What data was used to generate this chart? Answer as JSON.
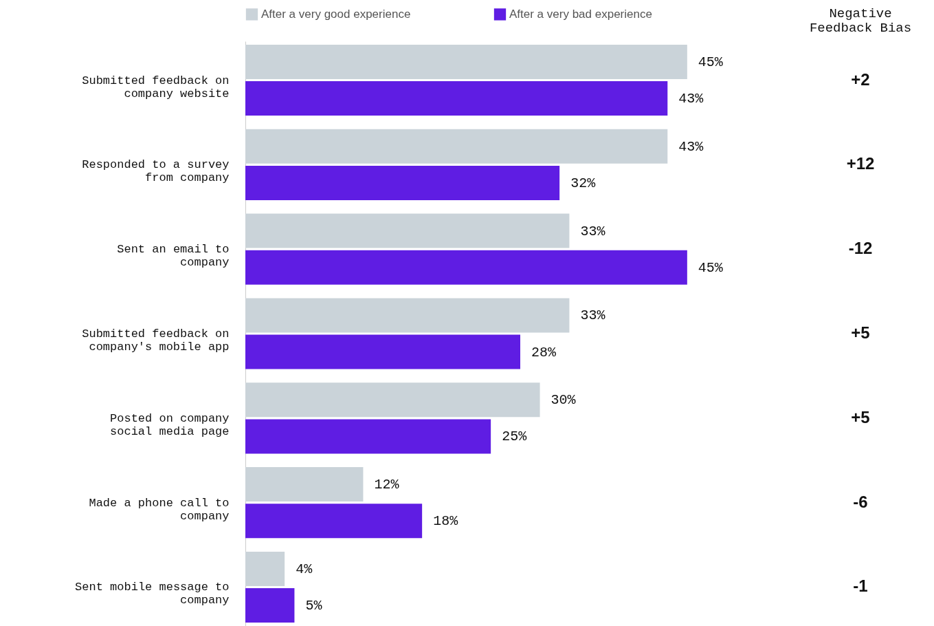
{
  "chart_data": {
    "type": "bar",
    "orientation": "horizontal",
    "categories": [
      "Submitted feedback on\ncompany website",
      "Responded to a survey\nfrom company",
      "Sent an email to\ncompany",
      "Submitted feedback on\ncompany's mobile app",
      "Posted on company\nsocial media page",
      "Made a phone call to\ncompany",
      "Sent mobile message to\ncompany"
    ],
    "series": [
      {
        "name": "After a very good experience",
        "color": "#cad3d9",
        "values": [
          45,
          43,
          33,
          33,
          30,
          12,
          4
        ],
        "value_labels": [
          "45%",
          "43%",
          "33%",
          "33%",
          "30%",
          "12%",
          "4%"
        ]
      },
      {
        "name": "After a very bad experience",
        "color": "#5f1de3",
        "values": [
          43,
          32,
          45,
          28,
          25,
          18,
          5
        ],
        "value_labels": [
          "43%",
          "32%",
          "45%",
          "28%",
          "25%",
          "18%",
          "5%"
        ]
      }
    ],
    "xlim": [
      0,
      70
    ],
    "tick_labels": "y",
    "grid": false,
    "legend": "top",
    "annotations": [
      "Negative\nFeedback Bias",
      "+2",
      "+12",
      "-12",
      "+5",
      "+5",
      "-6",
      "-1"
    ]
  }
}
